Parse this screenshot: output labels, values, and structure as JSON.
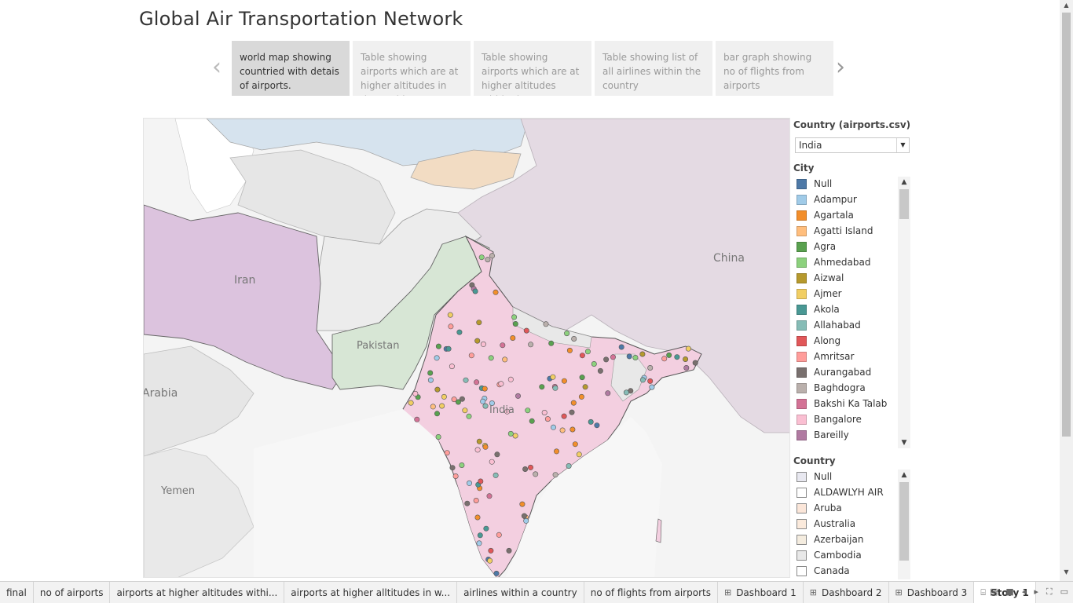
{
  "story": {
    "title": "Global Air Transportation Network",
    "prev_icon": "chevron-left-icon",
    "next_icon": "chevron-right-icon",
    "points": [
      "world map showing countried with detais of airports.",
      "Table showing airports which are at higher altitudes  in  the world",
      "Table showing airports which are at higher altitudes  within  the country",
      "Table showing list of all airlines within the country",
      "bar graph showing no of flights from airports"
    ],
    "active_point": 0
  },
  "map": {
    "labels": {
      "iran": "Iran",
      "pakistan": "Pakistan",
      "india": "India",
      "china": "China",
      "arabia": "Arabia",
      "yemen": "Yemen"
    },
    "colors": {
      "india": "#f3cfe0",
      "pakistan": "#d7e6d5",
      "iran": "#dcc3de",
      "china": "#e2d8e1",
      "kazakhstan": "#d6e3ee",
      "kyrgyzstan": "#f2dcc3",
      "neutral": "#e4e4e4",
      "background": "#f4f4f4"
    }
  },
  "filter": {
    "title": "Country (airports.csv)",
    "selected": "India"
  },
  "city_legend": {
    "title": "City",
    "items": [
      {
        "label": "Null",
        "color": "#4e79a7"
      },
      {
        "label": "Adampur",
        "color": "#a0cbe8"
      },
      {
        "label": "Agartala",
        "color": "#f28e2b"
      },
      {
        "label": "Agatti Island",
        "color": "#ffbe7d"
      },
      {
        "label": "Agra",
        "color": "#59a14f"
      },
      {
        "label": "Ahmedabad",
        "color": "#8cd17d"
      },
      {
        "label": "Aizwal",
        "color": "#b6992d"
      },
      {
        "label": "Ajmer",
        "color": "#f1ce63"
      },
      {
        "label": "Akola",
        "color": "#499894"
      },
      {
        "label": "Allahabad",
        "color": "#86bcb6"
      },
      {
        "label": "Along",
        "color": "#e15759"
      },
      {
        "label": "Amritsar",
        "color": "#ff9d9a"
      },
      {
        "label": "Aurangabad",
        "color": "#79706e"
      },
      {
        "label": "Baghdogra",
        "color": "#bab0ac"
      },
      {
        "label": "Bakshi Ka Talab",
        "color": "#d37295"
      },
      {
        "label": "Bangalore",
        "color": "#fabfd2"
      },
      {
        "label": "Bareilly",
        "color": "#b07aa1"
      }
    ]
  },
  "country_legend": {
    "title": "Country",
    "items": [
      {
        "label": "Null",
        "color": "#e8e8f0"
      },
      {
        "label": "ALDAWLYH AIR",
        "color": "#ffffff"
      },
      {
        "label": "Aruba",
        "color": "#fbe6d9"
      },
      {
        "label": "Australia",
        "color": "#fbeadc"
      },
      {
        "label": "Azerbaijan",
        "color": "#f4ecdf"
      },
      {
        "label": "Cambodia",
        "color": "#e8e8e8"
      },
      {
        "label": "Canada",
        "color": "#ffffff"
      }
    ]
  },
  "tabs": [
    {
      "label": "final",
      "icon": ""
    },
    {
      "label": "no of airports",
      "icon": ""
    },
    {
      "label": "airports  at higher altitudes withi...",
      "icon": ""
    },
    {
      "label": "airports at higher alltitudes in w...",
      "icon": ""
    },
    {
      "label": "airlines  within a country",
      "icon": ""
    },
    {
      "label": "no of flights from airports",
      "icon": ""
    },
    {
      "label": "Dashboard 1",
      "icon": "dashboard-grid-icon"
    },
    {
      "label": "Dashboard 2",
      "icon": "dashboard-grid-icon"
    },
    {
      "label": "Dashboard 3",
      "icon": "dashboard-grid-icon"
    },
    {
      "label": "Story 1",
      "icon": "story-book-icon"
    }
  ],
  "active_tab": 9,
  "tab_controls": [
    "sheet-sorter-icon",
    "show-tabs-icon",
    "prev-sheet-icon",
    "next-sheet-icon",
    "fullscreen-icon",
    "presentation-icon"
  ]
}
